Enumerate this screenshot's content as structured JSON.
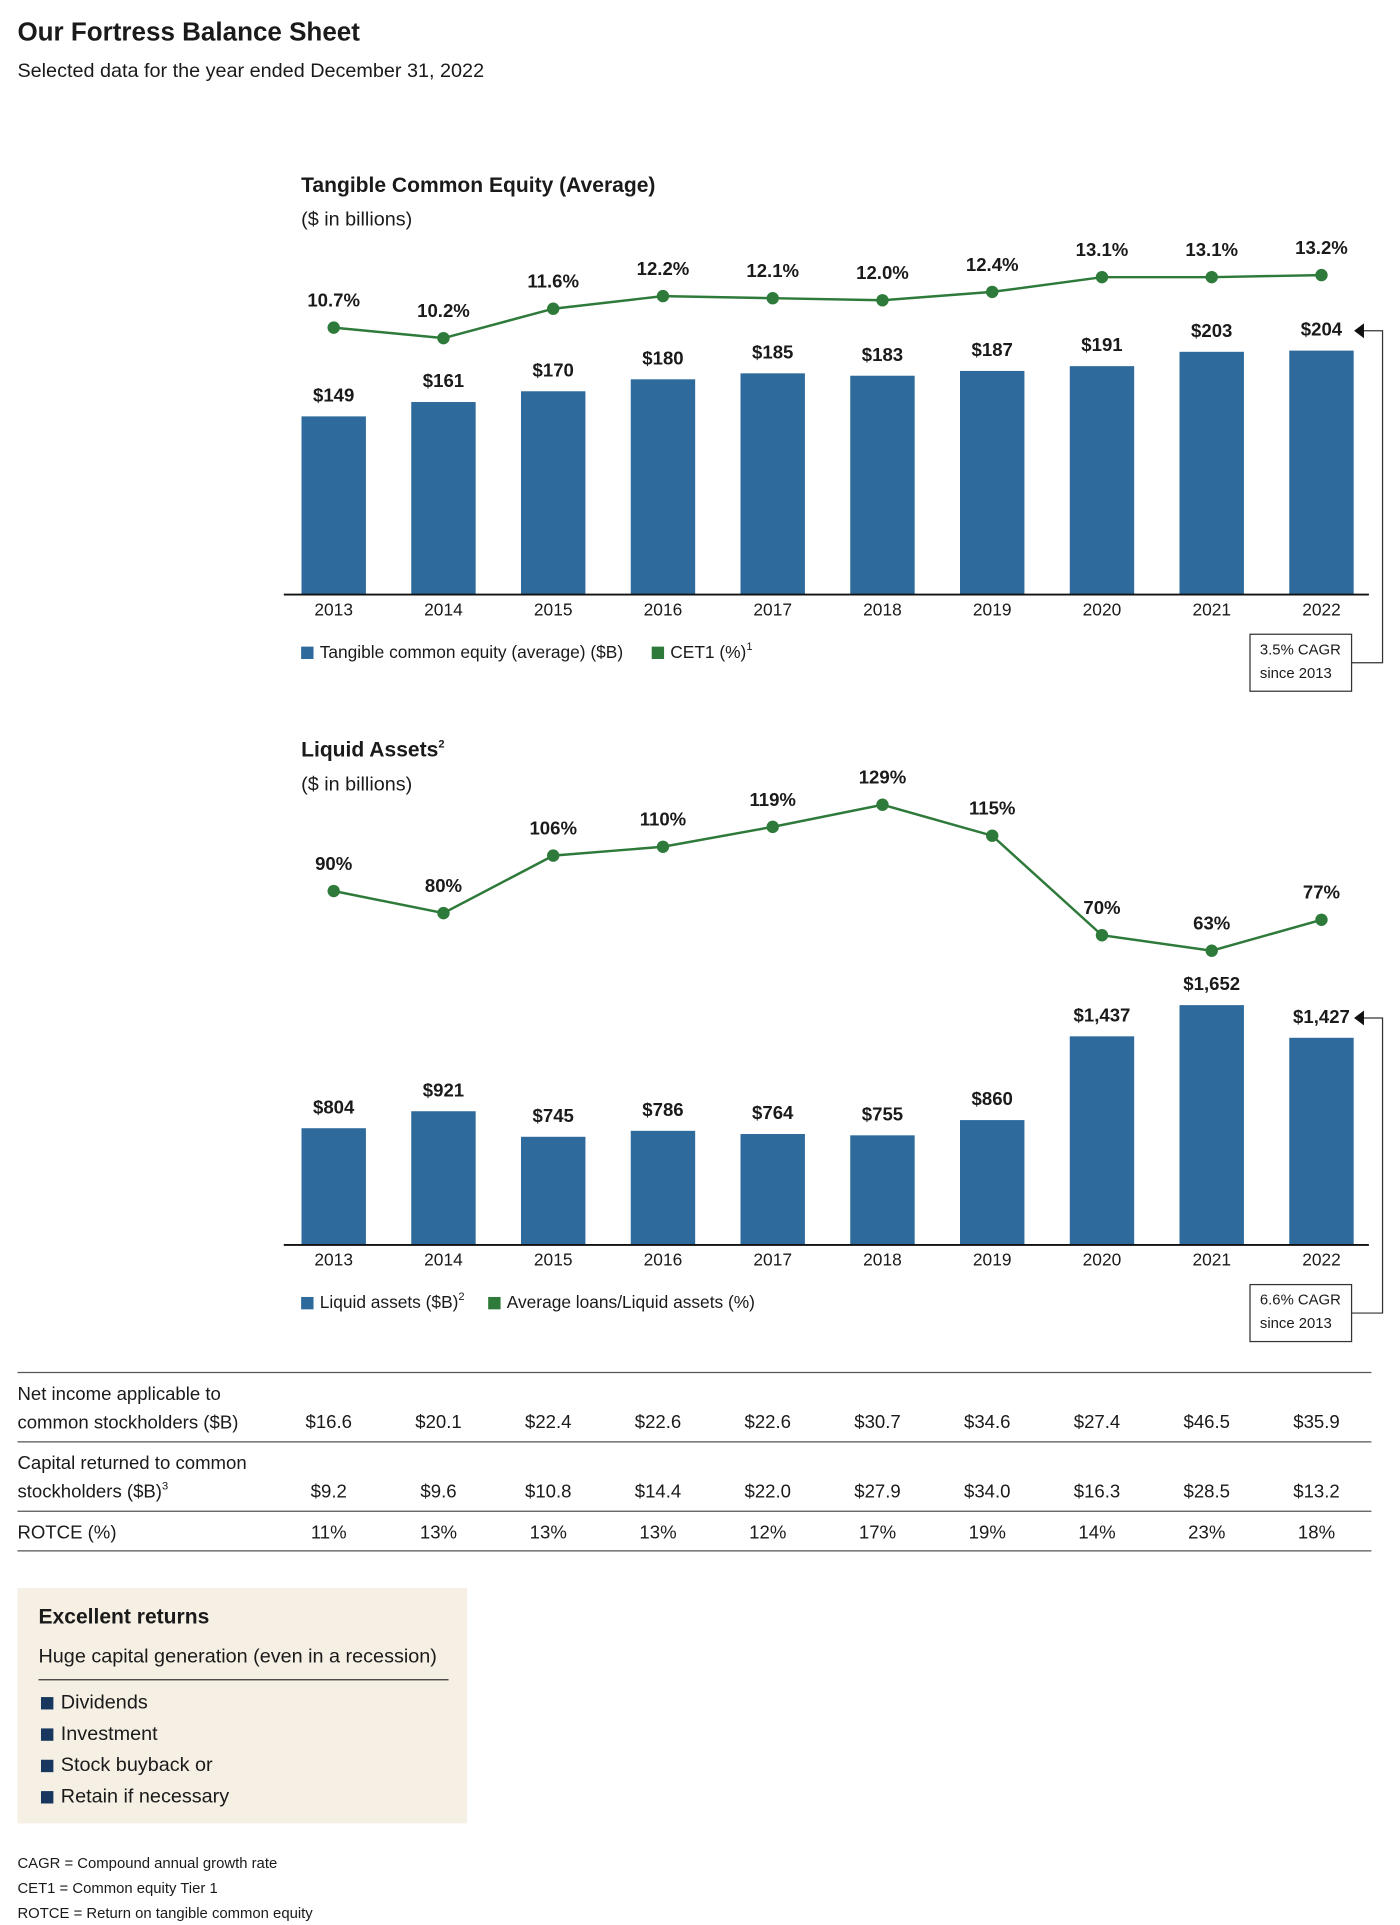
{
  "header": {
    "title": "Our Fortress Balance Sheet",
    "subtitle": "Selected data for the year ended December 31, 2022"
  },
  "chart_data": [
    {
      "type": "bar",
      "title": "Tangible Common Equity (Average)",
      "subtitle": "($ in billions)",
      "categories": [
        "2013",
        "2014",
        "2015",
        "2016",
        "2017",
        "2018",
        "2019",
        "2020",
        "2021",
        "2022"
      ],
      "series": [
        {
          "name": "Tangible common equity (average) ($B)",
          "type": "bar",
          "color": "#2e6a9c",
          "values": [
            149,
            161,
            170,
            180,
            185,
            183,
            187,
            191,
            203,
            204
          ],
          "value_labels": [
            "$149",
            "$161",
            "$170",
            "$180",
            "$185",
            "$183",
            "$187",
            "$191",
            "$203",
            "$204"
          ]
        },
        {
          "name": "CET1 (%)",
          "footnote_ref": "1",
          "type": "line",
          "axis": "y2",
          "color": "#2e7a3a",
          "values": [
            10.7,
            10.2,
            11.6,
            12.2,
            12.1,
            12.0,
            12.4,
            13.1,
            13.1,
            13.2
          ],
          "value_labels": [
            "10.7%",
            "10.2%",
            "11.6%",
            "12.2%",
            "12.1%",
            "12.0%",
            "12.4%",
            "13.1%",
            "13.1%",
            "13.2%"
          ]
        }
      ],
      "ylim": [
        0,
        290
      ],
      "y2lim": [
        -2,
        14.5
      ],
      "annotation": [
        "3.5% CAGR",
        "since 2013"
      ]
    },
    {
      "type": "bar",
      "title": "Liquid Assets",
      "title_note": "2",
      "subtitle": "($ in billions)",
      "categories": [
        "2013",
        "2014",
        "2015",
        "2016",
        "2017",
        "2018",
        "2019",
        "2020",
        "2021",
        "2022"
      ],
      "series": [
        {
          "name": "Liquid assets ($B)",
          "footnote_ref": "2",
          "type": "bar",
          "color": "#2e6a9c",
          "values": [
            804,
            921,
            745,
            786,
            764,
            755,
            860,
            1437,
            1652,
            1427
          ],
          "value_labels": [
            "$804",
            "$921",
            "$745",
            "$786",
            "$764",
            "$755",
            "$860",
            "$1,437",
            "$1,652",
            "$1,427"
          ]
        },
        {
          "name": "Average loans/Liquid assets (%)",
          "type": "line",
          "axis": "y2",
          "color": "#2e7a3a",
          "values": [
            90,
            80,
            106,
            110,
            119,
            129,
            115,
            70,
            63,
            77
          ],
          "value_labels": [
            "90%",
            "80%",
            "106%",
            "110%",
            "119%",
            "129%",
            "115%",
            "70%",
            "63%",
            "77%"
          ]
        }
      ],
      "ylim": [
        0,
        3200
      ],
      "y2lim": [
        -70,
        140
      ],
      "annotation": [
        "6.6% CAGR",
        "since 2013"
      ]
    }
  ],
  "table": {
    "rows": [
      {
        "label": [
          "Net income applicable to",
          "common stockholders ($B)"
        ],
        "cells": [
          "$16.6",
          "$20.1",
          "$22.4",
          "$22.6",
          "$22.6",
          "$30.7",
          "$34.6",
          "$27.4",
          "$46.5",
          "$35.9"
        ]
      },
      {
        "label": [
          "Capital returned to common",
          "stockholders ($B)"
        ],
        "footnote_ref": "3",
        "cells": [
          "$9.2",
          "$9.6",
          "$10.8",
          "$14.4",
          "$22.0",
          "$27.9",
          "$34.0",
          "$16.3",
          "$28.5",
          "$13.2"
        ]
      },
      {
        "label": [
          "ROTCE (%)"
        ],
        "cells": [
          "11%",
          "13%",
          "13%",
          "13%",
          "12%",
          "17%",
          "19%",
          "14%",
          "23%",
          "18%"
        ]
      }
    ]
  },
  "callout": {
    "title": "Excellent returns",
    "subtitle": "Huge capital generation (even in a recession)",
    "items": [
      "Dividends",
      "Investment",
      "Stock buyback or",
      "Retain if necessary"
    ]
  },
  "footnotes": [
    "CAGR = Compound annual growth rate",
    "CET1 = Common equity Tier 1",
    "ROTCE = Return on tangible common equity"
  ]
}
